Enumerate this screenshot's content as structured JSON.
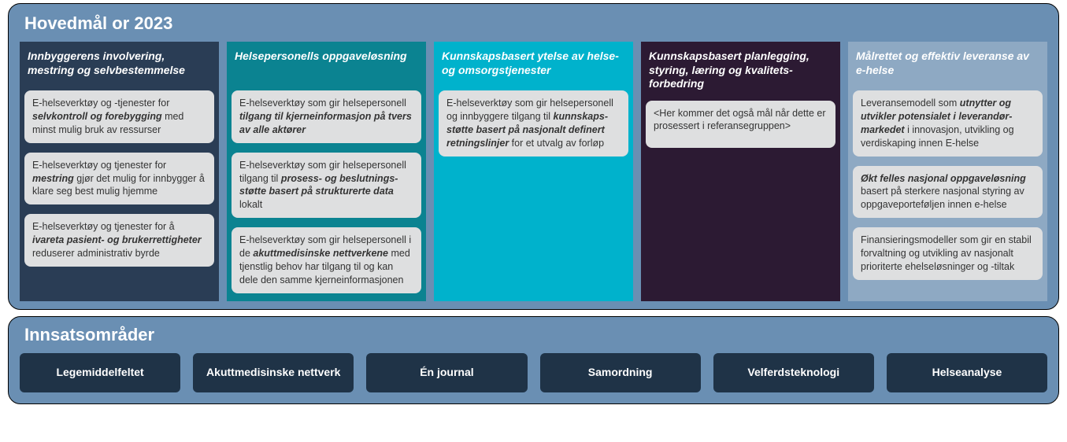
{
  "topTitle": "Hovedmål or 2023",
  "bottomTitle": "Innsatsområder",
  "colors": {
    "panel_bg": "#6a8fb3",
    "card_bg": "#dedfe0",
    "card_text": "#333333",
    "focus_bg": "#1f3347",
    "text_white": "#ffffff"
  },
  "columns": [
    {
      "bg": "#2a3d55",
      "title": "Innbyggerens involvering, mestring og selvbestemmelse",
      "cards": [
        "E-helseverktøy og -tjenester for <b><i>selvkontroll og forebygging</i></b> med minst mulig bruk av ressurser",
        "E-helseverktøy og tjenester for <b><i>mestring</i></b> gjør det mulig for innbygger å klare seg best mulig hjemme",
        "E-helseverktøy og tjenester for å <b><i>ivareta pasient- og brukerrettigheter</i></b> reduserer administrativ byrde"
      ]
    },
    {
      "bg": "#0b8391",
      "title": "Helsepersonells oppgaveløsning",
      "cards": [
        "E-helseverktøy som gir helsepersonell <b><i>tilgang til kjerneinformasjon på tvers av alle aktører</i></b>",
        "E-helseverktøy som gir helsepersonell tilgang til <b><i>prosess- og beslutnings-støtte basert på strukturerte data</i></b> lokalt",
        "E-helseverktøy som gir helsepersonell i de <b><i>akuttmedisinske nettverkene</i></b> med tjenstlig behov har tilgang til og kan dele den samme kjerneinformasjonen"
      ]
    },
    {
      "bg": "#00b2cc",
      "title": "Kunnskapsbasert ytelse av helse- og omsorgstjenester",
      "cards": [
        "E-helseverktøy som gir helsepersonell og innbyggere tilgang til <b><i>kunnskaps-støtte basert på nasjonalt definert retningslinjer</i></b> for et utvalg av forløp"
      ]
    },
    {
      "bg": "#2c1a33",
      "title": "Kunnskapsbasert planlegging, styring, læring og kvalitets-forbedring",
      "cards": [
        "&lt;Her kommer det også mål når dette er prosessert i referansegruppen&gt;"
      ]
    },
    {
      "bg": "#8ea9c3",
      "title": "Målrettet og effektiv leveranse av e-helse",
      "cards": [
        "Leveransemodell som <b><i>utnytter og utvikler potensialet i leverandør-markedet</i></b> i innovasjon, utvikling og verdiskaping innen E-helse",
        "<b><i>Økt felles nasjonal oppgaveløsning</i></b> basert på sterkere nasjonal styring av oppgaveporteføljen innen e-helse",
        "Finansieringsmodeller som gir en stabil forvaltning og utvikling av nasjonalt prioriterte ehelseløsninger og -tiltak"
      ]
    }
  ],
  "focusAreas": [
    "Legemiddelfeltet",
    "Akuttmedisinske nettverk",
    "Én journal",
    "Samordning",
    "Velferdsteknologi",
    "Helseanalyse"
  ]
}
